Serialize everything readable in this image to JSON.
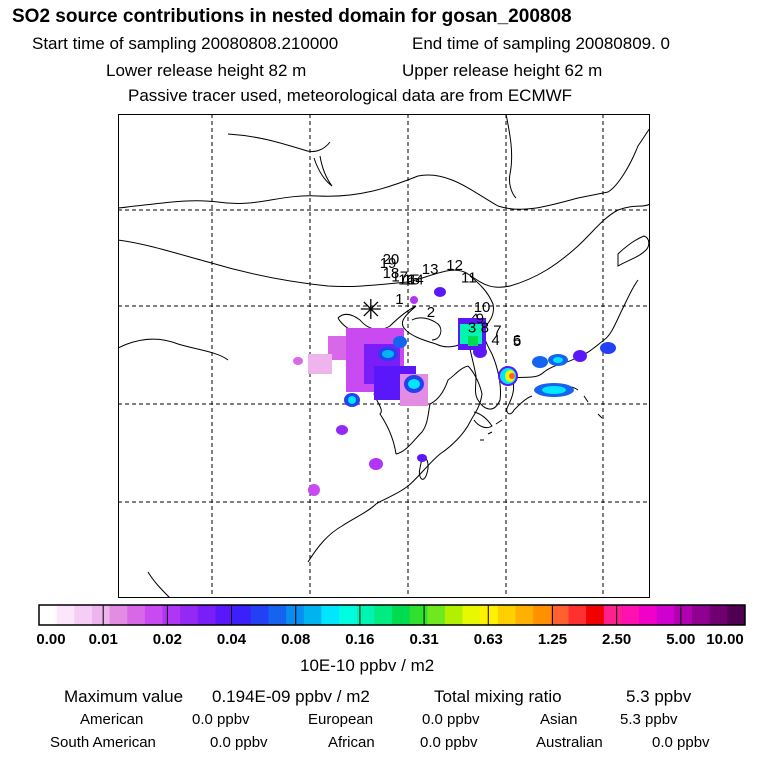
{
  "title": "SO2 source contributions in nested domain for gosan_200808",
  "header": {
    "start_label": "Start time of sampling 20080808.210000",
    "end_label": "End time of sampling 20080809.     0",
    "lower_label": "Lower release height   82 m",
    "upper_label": "Upper release height   62 m",
    "tracer_note": "Passive tracer used, meteorological data are from ECMWF"
  },
  "map": {
    "markers": [
      {
        "label": "20",
        "lon": 127.4,
        "lat": 37.9
      },
      {
        "label": "19",
        "lon": 127.1,
        "lat": 37.5
      },
      {
        "label": "18",
        "lon": 127.4,
        "lat": 36.5
      },
      {
        "label": "17",
        "lon": 128.3,
        "lat": 36.1
      },
      {
        "label": "16",
        "lon": 129.0,
        "lat": 35.8
      },
      {
        "label": "15",
        "lon": 129.5,
        "lat": 35.8
      },
      {
        "label": "14",
        "lon": 129.9,
        "lat": 35.8
      },
      {
        "label": "13",
        "lon": 131.4,
        "lat": 36.9
      },
      {
        "label": "12",
        "lon": 133.9,
        "lat": 37.3
      },
      {
        "label": "11",
        "lon": 135.4,
        "lat": 36.0
      },
      {
        "label": "10",
        "lon": 136.7,
        "lat": 33.0
      },
      {
        "label": "9",
        "lon": 136.9,
        "lat": 31.8
      },
      {
        "label": "8",
        "lon": 137.4,
        "lat": 30.9
      },
      {
        "label": "7",
        "lon": 138.7,
        "lat": 30.6
      },
      {
        "label": "6",
        "lon": 140.7,
        "lat": 29.6
      },
      {
        "label": "5",
        "lon": 140.7,
        "lat": 29.5
      },
      {
        "label": "4",
        "lon": 138.5,
        "lat": 29.6
      },
      {
        "label": "3",
        "lon": 136.1,
        "lat": 30.9
      },
      {
        "label": "2",
        "lon": 131.9,
        "lat": 32.5
      },
      {
        "label": "1",
        "lon": 128.7,
        "lat": 33.8
      }
    ],
    "receptor": {
      "lon": 126.2,
      "lat": 33.3
    }
  },
  "colorbar": {
    "colors": [
      "#ffffff",
      "#fbe6fb",
      "#f5cdf5",
      "#eeb4ee",
      "#e38ce3",
      "#d868e8",
      "#c84af0",
      "#b035f5",
      "#9428f5",
      "#7a1ef8",
      "#5a18fa",
      "#3c20fb",
      "#2440f5",
      "#1464f0",
      "#0a8cf0",
      "#00b4f0",
      "#00e6ff",
      "#00fce0",
      "#00f5b0",
      "#00eb80",
      "#00dc50",
      "#30e030",
      "#70e820",
      "#b0f000",
      "#e8f800",
      "#fff000",
      "#ffd000",
      "#ffb000",
      "#ff9000",
      "#ff6030",
      "#ff3030",
      "#f00000",
      "#ff2090",
      "#ff10b0",
      "#f000c8",
      "#d000d0",
      "#b000b0",
      "#900090",
      "#700070",
      "#500050"
    ],
    "ticks": [
      "0.00",
      "0.01",
      "0.02",
      "0.04",
      "0.08",
      "0.16",
      "0.31",
      "0.63",
      "1.25",
      "2.50",
      "5.00",
      "10.00"
    ],
    "units": "10E-10 ppbv / m2"
  },
  "summary": {
    "max_label": "Maximum value",
    "max_value": "0.194E-09 ppbv / m2",
    "total_label": "Total mixing ratio",
    "total_value": "5.3 ppbv",
    "regions": [
      {
        "name": "American",
        "value": "0.0 ppbv"
      },
      {
        "name": "European",
        "value": "0.0 ppbv"
      },
      {
        "name": "Asian",
        "value": "5.3 ppbv"
      },
      {
        "name": "South American",
        "value": "0.0 ppbv"
      },
      {
        "name": "African",
        "value": "0.0 ppbv"
      },
      {
        "name": "Australian",
        "value": "0.0 ppbv"
      }
    ]
  }
}
